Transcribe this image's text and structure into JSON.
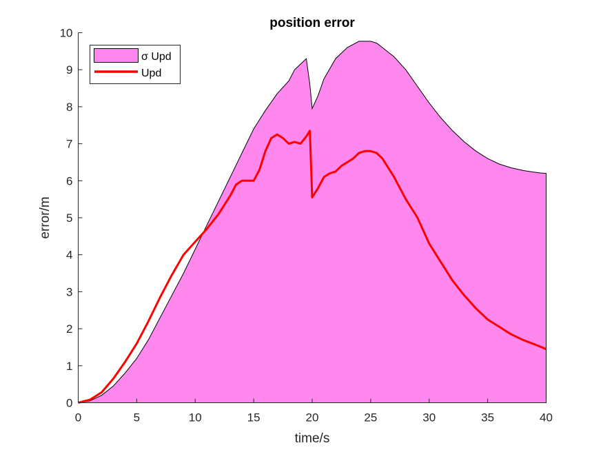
{
  "chart_data": {
    "type": "area",
    "title": "position error",
    "xlabel": "time/s",
    "ylabel": "error/m",
    "xlim": [
      0,
      40
    ],
    "ylim": [
      0,
      10
    ],
    "xticks": [
      0,
      5,
      10,
      15,
      20,
      25,
      30,
      35,
      40
    ],
    "yticks": [
      0,
      1,
      2,
      3,
      4,
      5,
      6,
      7,
      8,
      9,
      10
    ],
    "grid": false,
    "legend_position": "top-left",
    "series": [
      {
        "name": "σ Upd",
        "kind": "area",
        "fill_color": "#ff88ee",
        "edge_color": "#000000",
        "x": [
          0,
          1,
          2,
          3,
          4,
          5,
          6,
          7,
          8,
          9,
          10,
          11,
          12,
          13,
          14,
          15,
          16,
          17,
          18,
          18.5,
          19,
          19.5,
          19.8,
          20,
          20.5,
          21,
          22,
          23,
          24,
          25,
          25.5,
          26,
          27,
          28,
          29,
          30,
          31,
          32,
          33,
          34,
          35,
          36,
          37,
          38,
          39,
          39.5,
          40
        ],
        "y": [
          0,
          0.05,
          0.2,
          0.45,
          0.8,
          1.2,
          1.7,
          2.3,
          2.9,
          3.5,
          4.15,
          4.8,
          5.45,
          6.1,
          6.75,
          7.4,
          7.9,
          8.35,
          8.7,
          9.0,
          9.15,
          9.3,
          8.6,
          7.95,
          8.3,
          8.75,
          9.3,
          9.6,
          9.77,
          9.77,
          9.72,
          9.6,
          9.35,
          9.0,
          8.55,
          8.1,
          7.7,
          7.35,
          7.05,
          6.8,
          6.6,
          6.45,
          6.35,
          6.28,
          6.23,
          6.21,
          6.2
        ]
      },
      {
        "name": "Upd",
        "kind": "line",
        "color": "#ff0000",
        "x": [
          0,
          1,
          2,
          3,
          4,
          5,
          6,
          7,
          8,
          9,
          10,
          11,
          12,
          13,
          13.5,
          14,
          14.5,
          15,
          15.5,
          16,
          16.5,
          17,
          17.5,
          18,
          18.5,
          19,
          19.5,
          19.8,
          20,
          20.5,
          21,
          21.5,
          22,
          22.5,
          23,
          23.5,
          24,
          24.5,
          25,
          25.5,
          26,
          27,
          28,
          29,
          30,
          31,
          32,
          33,
          34,
          35,
          36,
          37,
          38,
          39,
          40
        ],
        "y": [
          0,
          0.08,
          0.28,
          0.65,
          1.1,
          1.6,
          2.2,
          2.85,
          3.45,
          4.0,
          4.35,
          4.7,
          5.1,
          5.6,
          5.9,
          6.0,
          6.0,
          6.0,
          6.3,
          6.8,
          7.15,
          7.25,
          7.15,
          7.0,
          7.05,
          7.0,
          7.2,
          7.35,
          5.55,
          5.8,
          6.1,
          6.2,
          6.25,
          6.4,
          6.5,
          6.6,
          6.75,
          6.8,
          6.8,
          6.75,
          6.6,
          6.1,
          5.5,
          5.0,
          4.3,
          3.8,
          3.3,
          2.9,
          2.55,
          2.25,
          2.05,
          1.85,
          1.7,
          1.58,
          1.45
        ]
      }
    ]
  }
}
